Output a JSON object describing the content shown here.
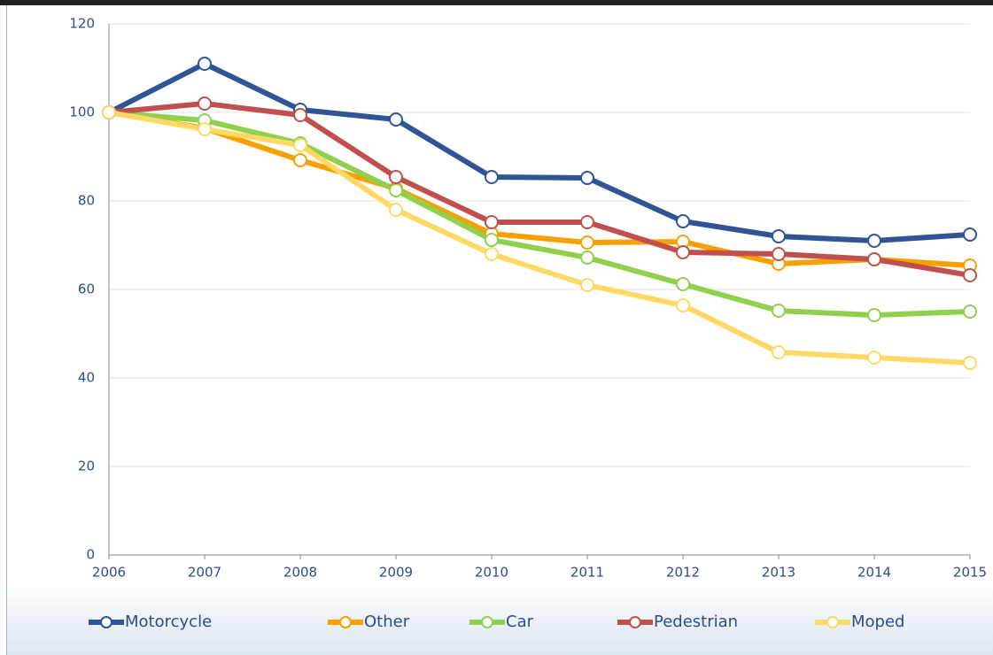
{
  "chart_data": {
    "type": "line",
    "x": [
      2006,
      2007,
      2008,
      2009,
      2010,
      2011,
      2012,
      2013,
      2014,
      2015
    ],
    "xlim": [
      2006,
      2015
    ],
    "xticks": [
      2006,
      2007,
      2008,
      2009,
      2010,
      2011,
      2012,
      2013,
      2014,
      2015
    ],
    "ylim": [
      0,
      120
    ],
    "yticks": [
      0,
      20,
      40,
      60,
      80,
      100,
      120
    ],
    "grid": true,
    "legend": "bottom",
    "series": [
      {
        "name": "Motorcycle",
        "color": "#2f5597",
        "values": [
          100,
          111,
          100.6,
          98.4,
          85.4,
          85.2,
          75.4,
          72,
          71,
          72.4
        ]
      },
      {
        "name": "Other",
        "color": "#f8a000",
        "values": [
          100,
          96.4,
          89.2,
          82.8,
          72.6,
          70.6,
          70.8,
          65.8,
          66.8,
          65.4
        ]
      },
      {
        "name": "Car",
        "color": "#8fd14f",
        "values": [
          100,
          98.2,
          93,
          82.4,
          71.2,
          67.2,
          61.2,
          55.2,
          54.2,
          55
        ]
      },
      {
        "name": "Pedestrian",
        "color": "#c0504d",
        "values": [
          100,
          102,
          99.4,
          85.4,
          75.2,
          75.2,
          68.4,
          68,
          66.8,
          63.2
        ]
      },
      {
        "name": "Moped",
        "color": "#ffd966",
        "values": [
          100,
          96.2,
          92.6,
          78,
          68,
          61,
          56.4,
          45.8,
          44.6,
          43.4
        ]
      }
    ]
  }
}
